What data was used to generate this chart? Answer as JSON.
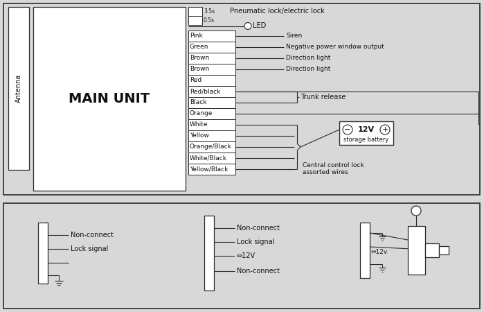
{
  "bg_color": "#d8d8d8",
  "box_color": "#f0f0f0",
  "white": "#ffffff",
  "line_color": "#2a2a2a",
  "text_color": "#111111",
  "main_unit_text": "MAIN UNIT",
  "antenna_text": "Antenna",
  "wire_rows": [
    {
      "label": "Pink",
      "annotation": "Siren",
      "has_line": true
    },
    {
      "label": "Green",
      "annotation": "Negative power window output",
      "has_line": true
    },
    {
      "label": "Brown",
      "annotation": "Direction light",
      "has_line": true
    },
    {
      "label": "Brown",
      "annotation": "Direction light",
      "has_line": true
    },
    {
      "label": "Red",
      "annotation": "",
      "has_line": false
    },
    {
      "label": "Red/black",
      "annotation": "",
      "has_line": true
    },
    {
      "label": "Black",
      "annotation": "",
      "has_line": false
    },
    {
      "label": "Orange",
      "annotation": "",
      "has_line": false
    },
    {
      "label": "White",
      "annotation": "",
      "has_line": true
    },
    {
      "label": "Yellow",
      "annotation": "",
      "has_line": true
    },
    {
      "label": "Orange/Black",
      "annotation": "",
      "has_line": true
    },
    {
      "label": "White/Black",
      "annotation": "",
      "has_line": true
    },
    {
      "label": "Yellow/Black",
      "annotation": "",
      "has_line": true
    }
  ],
  "battery_label_12v": "12V",
  "battery_label_storage": "storage battery",
  "central_label": "Central control lock\nassorted wires",
  "trunk_label": "Trunk release",
  "pneumatic_label": "Pneumatic lock/electric lock",
  "led_label": "LED",
  "label_35s": "3.5s",
  "label_05s": "0.5s",
  "bottom_left_labels": [
    "Non-connect",
    "Lock signal"
  ],
  "bottom_mid_labels": [
    "Non-connect",
    "Lock signal",
    "⇔12V",
    "Non-connect"
  ],
  "bottom_right_label": "⇔12v"
}
